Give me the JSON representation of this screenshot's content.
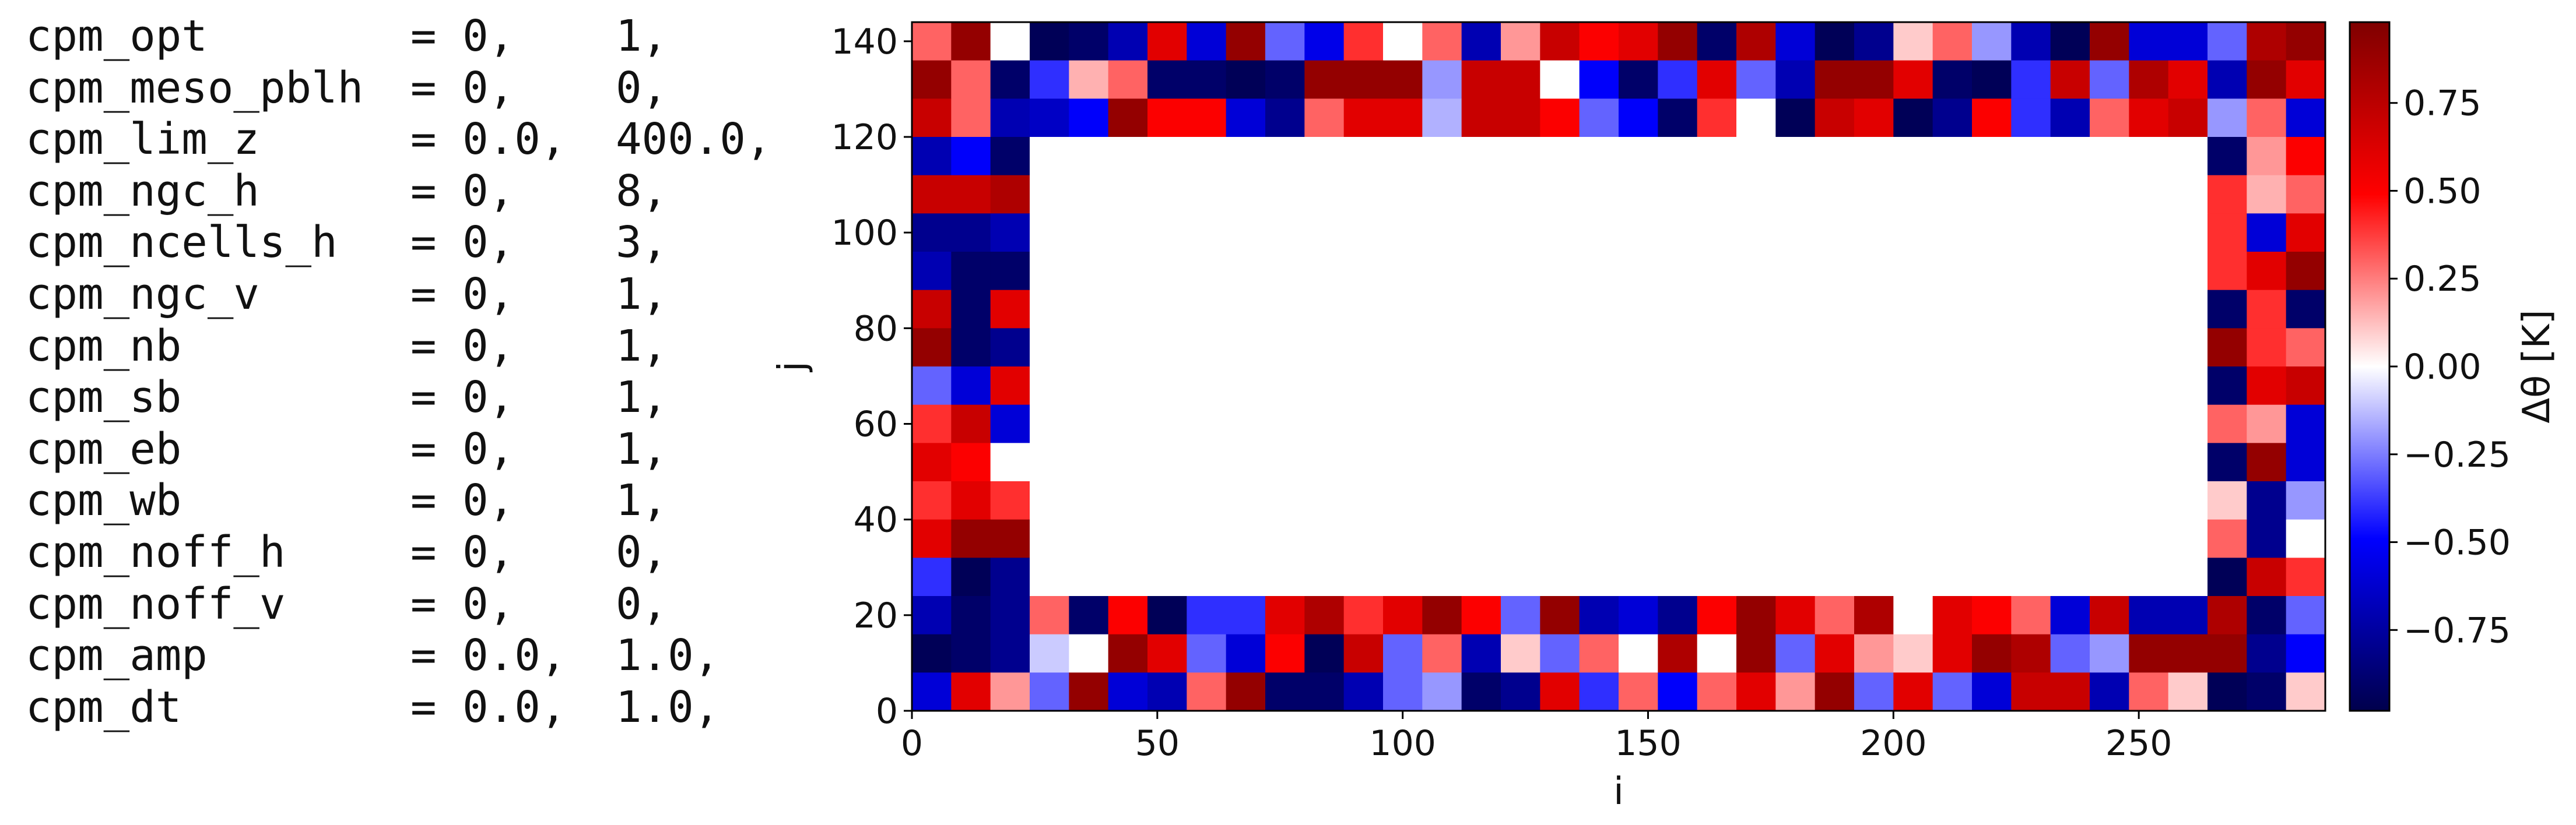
{
  "namelist": [
    {
      "name": "cpm_opt",
      "eq": "= 0,",
      "val": "1,"
    },
    {
      "name": "cpm_meso_pblh",
      "eq": "= 0,",
      "val": "0,"
    },
    {
      "name": "cpm_lim_z",
      "eq": "= 0.0,",
      "val": "400.0,"
    },
    {
      "name": "cpm_ngc_h",
      "eq": "= 0,",
      "val": "8,"
    },
    {
      "name": "cpm_ncells_h",
      "eq": "= 0,",
      "val": "3,"
    },
    {
      "name": "cpm_ngc_v",
      "eq": "= 0,",
      "val": "1,"
    },
    {
      "name": "cpm_nb",
      "eq": "= 0,",
      "val": "1,"
    },
    {
      "name": "cpm_sb",
      "eq": "= 0,",
      "val": "1,"
    },
    {
      "name": "cpm_eb",
      "eq": "= 0,",
      "val": "1,"
    },
    {
      "name": "cpm_wb",
      "eq": "= 0,",
      "val": "1,"
    },
    {
      "name": "cpm_noff_h",
      "eq": "= 0,",
      "val": "0,"
    },
    {
      "name": "cpm_noff_v",
      "eq": "= 0,",
      "val": "0,"
    },
    {
      "name": "cpm_amp",
      "eq": "= 0.0,",
      "val": "1.0,"
    },
    {
      "name": "cpm_dt",
      "eq": "= 0.0,",
      "val": "1.0,"
    }
  ],
  "chart_data": {
    "type": "heatmap",
    "title": "",
    "xlabel": "i",
    "ylabel": "j",
    "xlim": [
      0,
      288
    ],
    "ylim": [
      0,
      144
    ],
    "xticks": [
      "0",
      "50",
      "100",
      "150",
      "200",
      "250"
    ],
    "yticks": [
      "0",
      "20",
      "40",
      "60",
      "80",
      "100",
      "120",
      "140"
    ],
    "cell_size": 8,
    "interior_i_range": [
      24,
      264
    ],
    "interior_j_range": [
      24,
      120
    ],
    "colormap": "seismic",
    "colormap_colors": [
      "#00004c",
      "#0000ff",
      "#ffffff",
      "#ff0000",
      "#7f0000"
    ],
    "vmin": -0.98,
    "vmax": 0.98,
    "colorbar_label": "Δθ [K]",
    "colorbar_ticks": [
      "−0.75",
      "−0.50",
      "−0.25",
      "0.00",
      "0.25",
      "0.50",
      "0.75"
    ],
    "grid": false,
    "rows_top_to_bottom": [
      [
        0.3,
        0.9,
        0.0,
        -0.95,
        -0.9,
        -0.7,
        0.6,
        -0.6,
        0.9,
        -0.3,
        -0.55,
        0.4,
        0.0,
        0.3,
        -0.7,
        0.2,
        0.7,
        0.5,
        0.6,
        0.9,
        -0.9,
        0.8,
        -0.6,
        -0.95,
        -0.8,
        0.1,
        0.3,
        -0.2,
        -0.7,
        -0.95,
        0.9,
        -0.6,
        -0.6,
        -0.3,
        0.8,
        0.9
      ],
      [
        0.9,
        0.3,
        -0.9,
        -0.4,
        0.15,
        0.3,
        -0.9,
        -0.9,
        -0.95,
        -0.9,
        0.9,
        0.9,
        0.9,
        -0.2,
        0.7,
        0.7,
        0.0,
        -0.5,
        -0.9,
        -0.4,
        0.6,
        -0.3,
        -0.7,
        0.9,
        0.9,
        0.6,
        -0.9,
        -0.95,
        -0.4,
        0.7,
        -0.3,
        0.8,
        0.6,
        -0.7,
        0.9,
        0.6
      ],
      [
        0.7,
        0.3,
        -0.7,
        -0.65,
        -0.5,
        0.9,
        0.5,
        0.5,
        -0.6,
        -0.8,
        0.3,
        0.6,
        0.6,
        -0.15,
        0.7,
        0.7,
        0.5,
        -0.3,
        -0.5,
        -0.9,
        0.4,
        0.0,
        -0.95,
        0.7,
        0.6,
        -0.95,
        -0.8,
        0.5,
        -0.4,
        -0.7,
        0.3,
        0.6,
        0.7,
        -0.2,
        0.3,
        -0.6
      ],
      [
        -0.7,
        -0.5,
        -0.9,
        null,
        null,
        null,
        null,
        null,
        null,
        null,
        null,
        null,
        null,
        null,
        null,
        null,
        null,
        null,
        null,
        null,
        null,
        null,
        null,
        null,
        null,
        null,
        null,
        null,
        null,
        null,
        null,
        null,
        null,
        -0.9,
        0.2,
        0.5
      ],
      [
        0.7,
        0.7,
        0.8,
        null,
        null,
        null,
        null,
        null,
        null,
        null,
        null,
        null,
        null,
        null,
        null,
        null,
        null,
        null,
        null,
        null,
        null,
        null,
        null,
        null,
        null,
        null,
        null,
        null,
        null,
        null,
        null,
        null,
        null,
        0.4,
        0.15,
        0.3
      ],
      [
        -0.8,
        -0.8,
        -0.7,
        null,
        null,
        null,
        null,
        null,
        null,
        null,
        null,
        null,
        null,
        null,
        null,
        null,
        null,
        null,
        null,
        null,
        null,
        null,
        null,
        null,
        null,
        null,
        null,
        null,
        null,
        null,
        null,
        null,
        null,
        0.4,
        -0.6,
        0.6
      ],
      [
        -0.7,
        -0.9,
        -0.9,
        null,
        null,
        null,
        null,
        null,
        null,
        null,
        null,
        null,
        null,
        null,
        null,
        null,
        null,
        null,
        null,
        null,
        null,
        null,
        null,
        null,
        null,
        null,
        null,
        null,
        null,
        null,
        null,
        null,
        null,
        0.4,
        0.6,
        0.9
      ],
      [
        0.7,
        -0.9,
        0.6,
        null,
        null,
        null,
        null,
        null,
        null,
        null,
        null,
        null,
        null,
        null,
        null,
        null,
        null,
        null,
        null,
        null,
        null,
        null,
        null,
        null,
        null,
        null,
        null,
        null,
        null,
        null,
        null,
        null,
        null,
        -0.9,
        0.4,
        -0.9
      ],
      [
        0.9,
        -0.9,
        -0.8,
        null,
        null,
        null,
        null,
        null,
        null,
        null,
        null,
        null,
        null,
        null,
        null,
        null,
        null,
        null,
        null,
        null,
        null,
        null,
        null,
        null,
        null,
        null,
        null,
        null,
        null,
        null,
        null,
        null,
        null,
        0.9,
        0.4,
        0.3
      ],
      [
        -0.3,
        -0.6,
        0.6,
        null,
        null,
        null,
        null,
        null,
        null,
        null,
        null,
        null,
        null,
        null,
        null,
        null,
        null,
        null,
        null,
        null,
        null,
        null,
        null,
        null,
        null,
        null,
        null,
        null,
        null,
        null,
        null,
        null,
        null,
        -0.9,
        0.6,
        0.7
      ],
      [
        0.4,
        0.7,
        -0.6,
        null,
        null,
        null,
        null,
        null,
        null,
        null,
        null,
        null,
        null,
        null,
        null,
        null,
        null,
        null,
        null,
        null,
        null,
        null,
        null,
        null,
        null,
        null,
        null,
        null,
        null,
        null,
        null,
        null,
        null,
        0.3,
        0.2,
        -0.6
      ],
      [
        0.6,
        0.5,
        0.0,
        null,
        null,
        null,
        null,
        null,
        null,
        null,
        null,
        null,
        null,
        null,
        null,
        null,
        null,
        null,
        null,
        null,
        null,
        null,
        null,
        null,
        null,
        null,
        null,
        null,
        null,
        null,
        null,
        null,
        null,
        -0.9,
        0.9,
        -0.6
      ],
      [
        0.4,
        0.6,
        0.4,
        null,
        null,
        null,
        null,
        null,
        null,
        null,
        null,
        null,
        null,
        null,
        null,
        null,
        null,
        null,
        null,
        null,
        null,
        null,
        null,
        null,
        null,
        null,
        null,
        null,
        null,
        null,
        null,
        null,
        null,
        0.1,
        -0.8,
        -0.2
      ],
      [
        0.6,
        0.9,
        0.9,
        null,
        null,
        null,
        null,
        null,
        null,
        null,
        null,
        null,
        null,
        null,
        null,
        null,
        null,
        null,
        null,
        null,
        null,
        null,
        null,
        null,
        null,
        null,
        null,
        null,
        null,
        null,
        null,
        null,
        null,
        0.3,
        -0.8,
        0.0
      ],
      [
        -0.4,
        -0.95,
        -0.8,
        null,
        null,
        null,
        null,
        null,
        null,
        null,
        null,
        null,
        null,
        null,
        null,
        null,
        null,
        null,
        null,
        null,
        null,
        null,
        null,
        null,
        null,
        null,
        null,
        null,
        null,
        null,
        null,
        null,
        null,
        -0.95,
        0.7,
        0.4
      ],
      [
        -0.7,
        -0.9,
        -0.8,
        0.3,
        -0.9,
        0.5,
        -0.95,
        -0.4,
        -0.4,
        0.6,
        0.8,
        0.4,
        0.6,
        0.9,
        0.5,
        -0.3,
        0.9,
        -0.7,
        -0.6,
        -0.8,
        0.5,
        0.9,
        0.6,
        0.3,
        0.8,
        0.0,
        0.6,
        0.5,
        0.3,
        -0.6,
        0.7,
        -0.7,
        -0.7,
        0.8,
        -0.9,
        -0.3
      ],
      [
        -0.95,
        -0.9,
        -0.8,
        -0.1,
        0.0,
        0.9,
        0.6,
        -0.3,
        -0.6,
        0.5,
        -0.95,
        0.7,
        -0.3,
        0.3,
        -0.7,
        0.1,
        -0.3,
        0.3,
        0.0,
        0.8,
        0.0,
        0.9,
        -0.3,
        0.6,
        0.2,
        0.1,
        0.6,
        0.9,
        0.8,
        -0.3,
        -0.2,
        0.9,
        0.9,
        0.9,
        -0.8,
        -0.5
      ],
      [
        -0.6,
        0.6,
        0.2,
        -0.3,
        0.9,
        -0.6,
        -0.7,
        0.3,
        0.9,
        -0.9,
        -0.9,
        -0.7,
        -0.3,
        -0.2,
        -0.9,
        -0.8,
        0.6,
        -0.4,
        0.3,
        -0.5,
        0.3,
        0.6,
        0.2,
        0.9,
        -0.3,
        0.6,
        -0.3,
        -0.6,
        0.7,
        0.7,
        -0.7,
        0.3,
        0.1,
        -0.95,
        -0.9,
        0.1
      ]
    ]
  }
}
